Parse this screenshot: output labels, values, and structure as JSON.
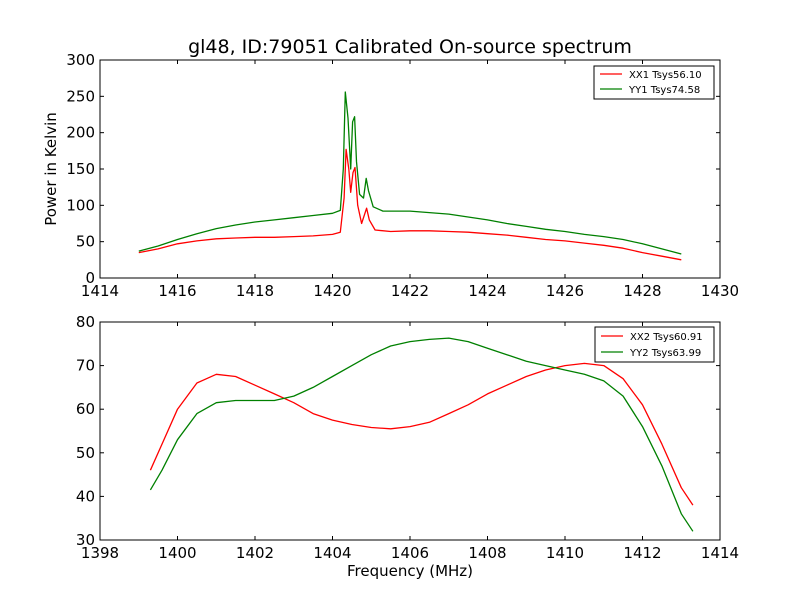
{
  "figure": {
    "title": "gl48, ID:79051 Calibrated On-source spectrum"
  },
  "chart_data": [
    {
      "type": "line",
      "title": "gl48, ID:79051 Calibrated On-source spectrum",
      "xlabel": "",
      "ylabel": "Power in Kelvin",
      "xlim": [
        1414,
        1430
      ],
      "ylim": [
        0,
        300
      ],
      "xticks": [
        1414,
        1416,
        1418,
        1420,
        1422,
        1424,
        1426,
        1428,
        1430
      ],
      "yticks": [
        0,
        50,
        100,
        150,
        200,
        250,
        300
      ],
      "grid": false,
      "legend_position": "top-right",
      "series": [
        {
          "name": "XX1 Tsys56.10",
          "color": "#ff0000",
          "points": [
            [
              1415.0,
              35
            ],
            [
              1415.5,
              40
            ],
            [
              1416.0,
              47
            ],
            [
              1416.5,
              51
            ],
            [
              1417.0,
              54
            ],
            [
              1417.5,
              55
            ],
            [
              1418.0,
              56
            ],
            [
              1418.5,
              56
            ],
            [
              1419.0,
              57
            ],
            [
              1419.5,
              58
            ],
            [
              1420.0,
              60
            ],
            [
              1420.2,
              63
            ],
            [
              1420.3,
              110
            ],
            [
              1420.35,
              177
            ],
            [
              1420.42,
              150
            ],
            [
              1420.47,
              118
            ],
            [
              1420.53,
              145
            ],
            [
              1420.58,
              152
            ],
            [
              1420.65,
              100
            ],
            [
              1420.75,
              75
            ],
            [
              1420.88,
              96
            ],
            [
              1420.95,
              80
            ],
            [
              1421.1,
              66
            ],
            [
              1421.5,
              64
            ],
            [
              1422.0,
              65
            ],
            [
              1422.5,
              65
            ],
            [
              1423.0,
              64
            ],
            [
              1423.5,
              63
            ],
            [
              1424.0,
              61
            ],
            [
              1424.5,
              59
            ],
            [
              1425.0,
              56
            ],
            [
              1425.5,
              53
            ],
            [
              1426.0,
              51
            ],
            [
              1426.5,
              48
            ],
            [
              1427.0,
              45
            ],
            [
              1427.5,
              41
            ],
            [
              1428.0,
              35
            ],
            [
              1428.5,
              30
            ],
            [
              1429.0,
              25
            ]
          ]
        },
        {
          "name": "YY1 Tsys74.58",
          "color": "#008000",
          "points": [
            [
              1415.0,
              37
            ],
            [
              1415.5,
              44
            ],
            [
              1416.0,
              53
            ],
            [
              1416.5,
              61
            ],
            [
              1417.0,
              68
            ],
            [
              1417.5,
              73
            ],
            [
              1418.0,
              77
            ],
            [
              1418.5,
              80
            ],
            [
              1419.0,
              83
            ],
            [
              1419.5,
              86
            ],
            [
              1420.0,
              89
            ],
            [
              1420.2,
              93
            ],
            [
              1420.28,
              150
            ],
            [
              1420.33,
              256
            ],
            [
              1420.4,
              220
            ],
            [
              1420.47,
              150
            ],
            [
              1420.52,
              215
            ],
            [
              1420.57,
              222
            ],
            [
              1420.62,
              160
            ],
            [
              1420.7,
              115
            ],
            [
              1420.8,
              110
            ],
            [
              1420.87,
              137
            ],
            [
              1420.93,
              120
            ],
            [
              1421.05,
              98
            ],
            [
              1421.3,
              92
            ],
            [
              1422.0,
              92
            ],
            [
              1422.5,
              90
            ],
            [
              1423.0,
              88
            ],
            [
              1423.5,
              84
            ],
            [
              1424.0,
              80
            ],
            [
              1424.5,
              75
            ],
            [
              1425.0,
              71
            ],
            [
              1425.5,
              67
            ],
            [
              1426.0,
              64
            ],
            [
              1426.5,
              60
            ],
            [
              1427.0,
              57
            ],
            [
              1427.5,
              53
            ],
            [
              1428.0,
              47
            ],
            [
              1428.5,
              40
            ],
            [
              1429.0,
              33
            ]
          ]
        }
      ]
    },
    {
      "type": "line",
      "title": "",
      "xlabel": "Frequency (MHz)",
      "ylabel": "",
      "xlim": [
        1398,
        1414
      ],
      "ylim": [
        30,
        80
      ],
      "xticks": [
        1398,
        1400,
        1402,
        1404,
        1406,
        1408,
        1410,
        1412,
        1414
      ],
      "yticks": [
        30,
        40,
        50,
        60,
        70,
        80
      ],
      "grid": false,
      "legend_position": "top-right",
      "series": [
        {
          "name": "XX2 Tsys60.91",
          "color": "#ff0000",
          "points": [
            [
              1399.3,
              46
            ],
            [
              1399.6,
              52
            ],
            [
              1400.0,
              60
            ],
            [
              1400.5,
              66
            ],
            [
              1401.0,
              68
            ],
            [
              1401.5,
              67.5
            ],
            [
              1402.0,
              65.5
            ],
            [
              1402.5,
              63.5
            ],
            [
              1403.0,
              61.5
            ],
            [
              1403.5,
              59
            ],
            [
              1404.0,
              57.5
            ],
            [
              1404.5,
              56.5
            ],
            [
              1405.0,
              55.8
            ],
            [
              1405.5,
              55.5
            ],
            [
              1406.0,
              56
            ],
            [
              1406.5,
              57
            ],
            [
              1407.0,
              59
            ],
            [
              1407.5,
              61
            ],
            [
              1408.0,
              63.5
            ],
            [
              1408.5,
              65.5
            ],
            [
              1409.0,
              67.5
            ],
            [
              1409.5,
              69
            ],
            [
              1410.0,
              70
            ],
            [
              1410.5,
              70.5
            ],
            [
              1411.0,
              70
            ],
            [
              1411.5,
              67
            ],
            [
              1412.0,
              61
            ],
            [
              1412.5,
              52
            ],
            [
              1413.0,
              42
            ],
            [
              1413.3,
              38
            ]
          ]
        },
        {
          "name": "YY2 Tsys63.99",
          "color": "#008000",
          "points": [
            [
              1399.3,
              41.5
            ],
            [
              1399.6,
              46
            ],
            [
              1400.0,
              53
            ],
            [
              1400.5,
              59
            ],
            [
              1401.0,
              61.5
            ],
            [
              1401.5,
              62
            ],
            [
              1402.0,
              62
            ],
            [
              1402.5,
              62
            ],
            [
              1403.0,
              63
            ],
            [
              1403.5,
              65
            ],
            [
              1404.0,
              67.5
            ],
            [
              1404.5,
              70
            ],
            [
              1405.0,
              72.5
            ],
            [
              1405.5,
              74.5
            ],
            [
              1406.0,
              75.5
            ],
            [
              1406.5,
              76
            ],
            [
              1407.0,
              76.3
            ],
            [
              1407.5,
              75.5
            ],
            [
              1408.0,
              74
            ],
            [
              1408.5,
              72.5
            ],
            [
              1409.0,
              71
            ],
            [
              1409.5,
              70
            ],
            [
              1410.0,
              69
            ],
            [
              1410.5,
              68
            ],
            [
              1411.0,
              66.5
            ],
            [
              1411.5,
              63
            ],
            [
              1412.0,
              56
            ],
            [
              1412.5,
              47
            ],
            [
              1413.0,
              36
            ],
            [
              1413.3,
              32
            ]
          ]
        }
      ]
    }
  ]
}
